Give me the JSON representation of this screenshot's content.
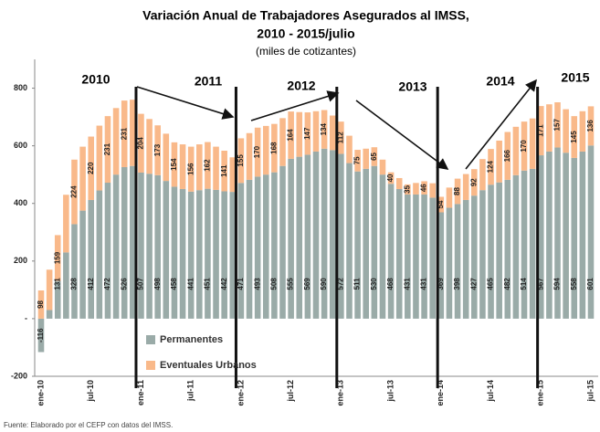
{
  "chart_data": {
    "type": "stacked_bar",
    "title": "Variación Anual de Trabajadores Asegurados al IMSS,",
    "title_line2": "2010 - 2015/julio",
    "subtitle": "(miles de cotizantes)",
    "source": "Fuente: Elaborado por el CEFP con datos del IMSS.",
    "annotations": [
      "2010",
      "2011",
      "2012",
      "2013",
      "2014",
      "2015"
    ],
    "categories": [
      "ene-10",
      null,
      null,
      null,
      null,
      null,
      "jul-10",
      null,
      null,
      null,
      null,
      null,
      "ene-11",
      null,
      null,
      null,
      null,
      null,
      "jul-11",
      null,
      null,
      null,
      null,
      null,
      "ene-12",
      null,
      null,
      null,
      null,
      null,
      "jul-12",
      null,
      null,
      null,
      null,
      null,
      "ene-13",
      null,
      null,
      null,
      null,
      null,
      "jul-13",
      null,
      null,
      null,
      null,
      null,
      "ene-14",
      null,
      null,
      null,
      null,
      null,
      "jul-14",
      null,
      null,
      null,
      null,
      null,
      "ene-15",
      null,
      null,
      null,
      null,
      null,
      "jul-15"
    ],
    "series": [
      {
        "name": "Permanentes",
        "color": "#9aaba8",
        "values": [
          -116,
          30,
          131,
          230,
          328,
          375,
          412,
          445,
          472,
          500,
          526,
          530,
          507,
          503,
          498,
          478,
          458,
          450,
          441,
          446,
          451,
          447,
          442,
          440,
          471,
          482,
          493,
          500,
          508,
          530,
          555,
          562,
          569,
          580,
          590,
          585,
          572,
          540,
          511,
          520,
          530,
          500,
          468,
          450,
          431,
          431,
          431,
          420,
          369,
          385,
          398,
          412,
          427,
          446,
          465,
          473,
          482,
          498,
          514,
          520,
          567,
          580,
          594,
          576,
          558,
          580,
          601
        ]
      },
      {
        "name": "Eventuales Urbanos",
        "color": "#f9b98a",
        "values": [
          98,
          140,
          159,
          200,
          224,
          222,
          220,
          225,
          231,
          231,
          231,
          230,
          204,
          190,
          173,
          164,
          154,
          155,
          156,
          159,
          162,
          150,
          141,
          120,
          155,
          162,
          170,
          169,
          168,
          166,
          164,
          155,
          147,
          140,
          134,
          120,
          112,
          95,
          75,
          70,
          65,
          52,
          40,
          38,
          35,
          40,
          46,
          50,
          54,
          70,
          88,
          90,
          92,
          108,
          124,
          145,
          166,
          168,
          170,
          175,
          171,
          164,
          157,
          151,
          145,
          140,
          136
        ]
      }
    ],
    "ylim": [
      -200,
      900
    ],
    "yticks": [
      {
        "value": -200,
        "label": "-200"
      },
      {
        "value": 0,
        "label": "-"
      },
      200,
      400,
      600,
      800
    ],
    "legend": "lower-left"
  }
}
